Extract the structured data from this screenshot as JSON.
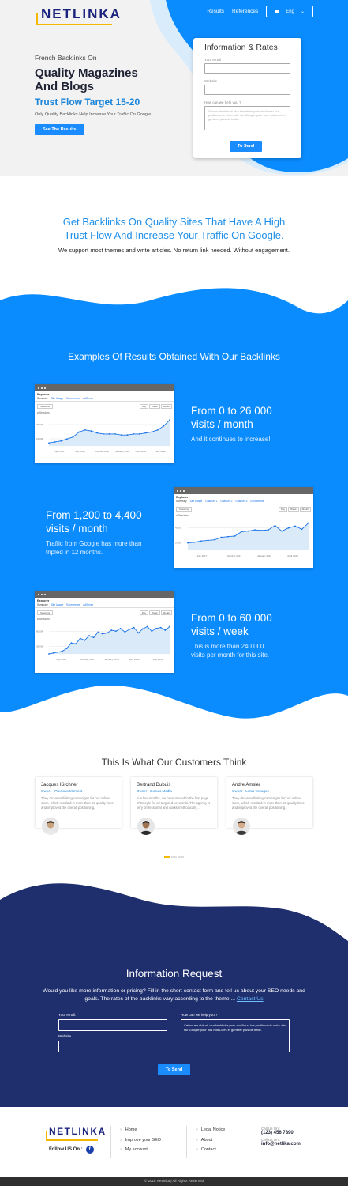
{
  "header": {
    "logo": "NETLINKA",
    "nav": [
      "Results",
      "References"
    ],
    "lang": "Eng"
  },
  "hero": {
    "pre": "French Backlinks On",
    "title_line1": "Quality Magazines",
    "title_line2": "And Blogs",
    "target": "Trust Flow Target 15-20",
    "sub": "Only Quality Backlinks Help Increase Your Traffic On Google.",
    "button": "See The Results"
  },
  "info_form": {
    "title": "Information & Rates",
    "email_label": "Your email",
    "website_label": "Website",
    "help_label": "How can we help you ?",
    "help_value": "J'aimerais obtenir des backlinks pour améliorer les positions de notre site sur Google pour nos mots-clés et générer plus de trafic.",
    "button": "To Send"
  },
  "intro": {
    "title_line1": "Get Backlinks On Quality Sites That Have A High",
    "title_line2": "Trust Flow And Increase Your Traffic On Google.",
    "sub": "We support most themes and write articles. No return link needed. Without engagement."
  },
  "examples": {
    "title": "Examples Of Results Obtained With Our Backlinks",
    "items": [
      {
        "title_line1": "From 0 to 26 000",
        "title_line2": "visits / month",
        "desc": "And it continues to increase!",
        "shot": {
          "header": "Explorer",
          "tabs": [
            "Summary",
            "Site Usage",
            "Ecommerce",
            "AdSense"
          ],
          "select": "Sessions",
          "buttons": [
            "Day",
            "Week",
            "Month"
          ],
          "legend": "Sessions",
          "y_ticks": [
            "20,000",
            "10,000"
          ],
          "x_ticks": [
            "April 2017",
            "July 2017",
            "October 2017",
            "January 2018",
            "April 2018",
            "July 2018"
          ],
          "values": [
            3,
            4,
            5,
            7,
            9,
            14,
            16,
            15,
            13,
            12,
            12,
            12,
            11,
            11,
            12,
            12,
            13,
            14,
            16,
            20,
            26
          ]
        }
      },
      {
        "title_line1": "From 1,200 to 4,400",
        "title_line2": "visits / month",
        "desc_line1": "Traffic from Google has more than",
        "desc_line2": "tripled in 12 months.",
        "shot": {
          "header": "Explorer",
          "tabs": [
            "Summary",
            "Site Usage",
            "Goal Set 1",
            "Goal Set 2",
            "Goal Set 3",
            "Ecommerce"
          ],
          "select": "Sessions",
          "buttons": [
            "Day",
            "Week",
            "Month"
          ],
          "legend": "Sessions",
          "y_ticks": [
            "4,000",
            "2,000"
          ],
          "x_ticks": [
            "July 2017",
            "October 2017",
            "January 2018",
            "April 2018"
          ],
          "values": [
            1.2,
            1.3,
            1.5,
            1.6,
            1.7,
            2.1,
            2.2,
            2.3,
            3.0,
            3.1,
            3.3,
            3.2,
            3.3,
            4.0,
            3.1,
            3.6,
            3.9,
            3.4,
            4.4
          ]
        }
      },
      {
        "title_line1": "From 0 to 60 000",
        "title_line2": "visits / week",
        "desc_line1": "This is more than 240 000",
        "desc_line2": "visits per month for this site.",
        "shot": {
          "header": "Explorer",
          "tabs": [
            "Summary",
            "Site Usage",
            "Ecommerce",
            "AdSense"
          ],
          "select": "Sessions",
          "buttons": [
            "Day",
            "Week",
            "Month"
          ],
          "legend": "Sessions",
          "y_ticks": [
            "60,000",
            "30,000"
          ],
          "x_ticks": [
            "July 2017",
            "October 2017",
            "January 2018",
            "April 2018",
            "July 2018"
          ],
          "values": [
            0,
            2,
            4,
            6,
            12,
            24,
            22,
            34,
            30,
            40,
            36,
            48,
            44,
            46,
            52,
            50,
            56,
            48,
            54,
            58,
            46,
            55,
            60,
            50,
            56,
            58,
            52,
            60
          ]
        }
      }
    ]
  },
  "testimonials": {
    "title": "This Is What Our Customers Think",
    "items": [
      {
        "name": "Jacques Kirchner",
        "role": "Owner - Precious Moment",
        "text": "They drove netlinking campaigns for our online store, which resulted in more than 50 quality links and improved the overall positioning."
      },
      {
        "name": "Bertrand Dubuis",
        "role": "Owner - Dubuis Media",
        "text": "In a few months, we have moved to the first page of Google for all targeted keywords. The agency is very professional and works methodically..."
      },
      {
        "name": "Andre Amsler",
        "role": "Owner - Lotus Voyages",
        "text": "They drove netlinking campaigns for our online store, which resulted in more than 50 quality links and improved the overall positioning."
      }
    ]
  },
  "request": {
    "title": "Information Request",
    "desc_line1": "Would you like more information or pricing? Fill in the short contact form and tell us about your SEO needs and",
    "desc_line2": "goals. The rates of the backlinks vary according to the theme ...",
    "link": "Contact Us",
    "email_label": "Your email:",
    "website_label": "Website",
    "help_label": "How can we help you ?",
    "help_value": "J'aimerais obtenir des backlinks pour améliorer les positions de notre site sur Google pour nos mots-clés et générer plus de trafic.",
    "button": "To Send"
  },
  "footer": {
    "logo": "NETLINKA",
    "follow": "Follow US On :",
    "fb": "f",
    "col1": [
      "Home",
      "Improve your SEO",
      "My account"
    ],
    "col2": [
      "Legal Notice",
      "About",
      "Contact"
    ],
    "call_label": "Call Us On :",
    "phone": "(123) 456 7890",
    "mail_label": "Call Us On :",
    "email": "info@netlika.com",
    "copyright": "© 2018 Netlinka | All Rights Reserved"
  },
  "colors": {
    "brand_blue": "#0a8cff",
    "navy": "#1f2f6e",
    "accent_yellow": "#f5b800"
  }
}
